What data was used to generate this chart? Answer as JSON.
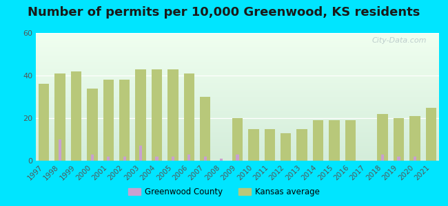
{
  "title": "Number of permits per 10,000 Greenwood, KS residents",
  "years": [
    1997,
    1998,
    1999,
    2000,
    2001,
    2002,
    2003,
    2004,
    2005,
    2006,
    2007,
    2008,
    2009,
    2010,
    2011,
    2012,
    2013,
    2014,
    2015,
    2016,
    2017,
    2018,
    2019,
    2020,
    2021
  ],
  "greenwood_county": [
    0,
    10,
    0,
    3,
    2,
    2,
    7,
    2,
    2,
    3,
    2,
    1,
    3,
    0,
    0,
    0,
    0,
    0,
    0,
    0,
    0,
    3,
    2,
    2,
    0
  ],
  "kansas_avg": [
    36,
    41,
    42,
    34,
    38,
    38,
    43,
    43,
    43,
    41,
    30,
    0,
    20,
    15,
    15,
    13,
    15,
    19,
    19,
    19,
    0,
    22,
    20,
    21,
    25
  ],
  "greenwood_color": "#c8a0d0",
  "kansas_color": "#b8c87a",
  "background_outer": "#00e5ff",
  "grad_bottom": "#d4edda",
  "grad_top": "#f0fff0",
  "ylim": [
    0,
    60
  ],
  "yticks": [
    0,
    20,
    40,
    60
  ],
  "title_fontsize": 13,
  "tick_fontsize": 7.5,
  "watermark_text": "City-Data.com",
  "legend_greenwood": "Greenwood County",
  "legend_kansas": "Kansas average",
  "kansas_bar_width": 0.65,
  "greenwood_bar_width": 0.18
}
